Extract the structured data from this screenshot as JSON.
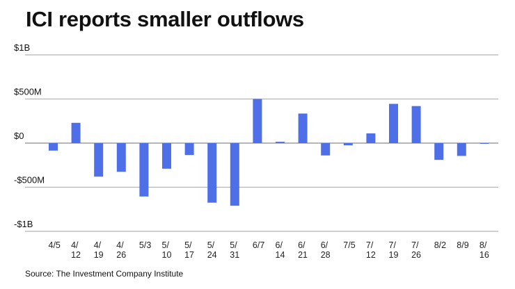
{
  "chart_data": {
    "type": "bar",
    "title": "ICI reports smaller outflows",
    "source": "Source: The Investment Company Institute",
    "xlabel": "",
    "ylabel": "",
    "ylim": [
      -1000,
      1000
    ],
    "units": "millions USD",
    "grid": true,
    "legend": "none",
    "bar_color": "#4f6fe8",
    "yticks": [
      {
        "value": 1000,
        "label": "$1B"
      },
      {
        "value": 500,
        "label": "$500M"
      },
      {
        "value": 0,
        "label": "$0"
      },
      {
        "value": -500,
        "label": "-$500M"
      },
      {
        "value": -1000,
        "label": "-$1B"
      }
    ],
    "categories": [
      [
        "4/5"
      ],
      [
        "4/",
        "12"
      ],
      [
        "4/",
        "19"
      ],
      [
        "4/",
        "26"
      ],
      [
        "5/3"
      ],
      [
        "5/",
        "10"
      ],
      [
        "5/",
        "17"
      ],
      [
        "5/",
        "24"
      ],
      [
        "5/",
        "31"
      ],
      [
        "6/7"
      ],
      [
        "6/",
        "14"
      ],
      [
        "6/",
        "21"
      ],
      [
        "6/",
        "28"
      ],
      [
        "7/5"
      ],
      [
        "7/",
        "12"
      ],
      [
        "7/",
        "19"
      ],
      [
        "7/",
        "26"
      ],
      [
        "8/2"
      ],
      [
        "8/9"
      ],
      [
        "8/",
        "16"
      ]
    ],
    "values": [
      -85,
      230,
      -380,
      -325,
      -605,
      -290,
      -135,
      -675,
      -710,
      500,
      15,
      335,
      -140,
      -25,
      110,
      445,
      420,
      -190,
      -145,
      -3
    ]
  }
}
